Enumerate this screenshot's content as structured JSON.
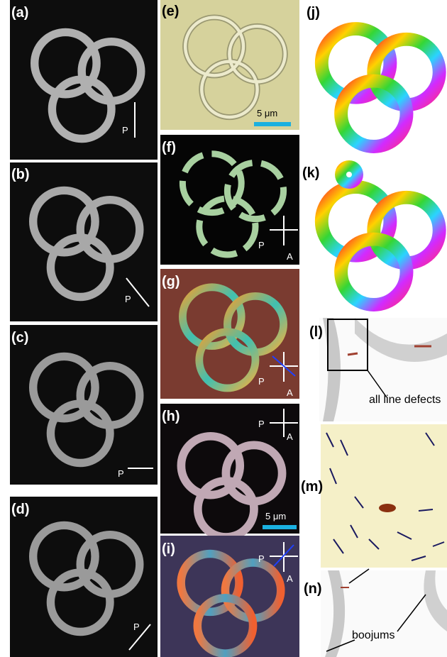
{
  "panels": {
    "a": {
      "label": "(a)",
      "polarizer": "P"
    },
    "b": {
      "label": "(b)",
      "polarizer": "P"
    },
    "c": {
      "label": "(c)",
      "polarizer": "P"
    },
    "d": {
      "label": "(d)",
      "polarizer": "P"
    },
    "e": {
      "label": "(e)",
      "scale": "5 μm"
    },
    "f": {
      "label": "(f)",
      "polarizer": "P",
      "analyzer": "A"
    },
    "g": {
      "label": "(g)",
      "polarizer": "P",
      "analyzer": "A"
    },
    "h": {
      "label": "(h)",
      "polarizer": "P",
      "analyzer": "A",
      "scale": "5 μm"
    },
    "i": {
      "label": "(i)",
      "polarizer": "P",
      "analyzer": "A"
    },
    "j": {
      "label": "(j)"
    },
    "k": {
      "label": "(k)"
    },
    "l": {
      "label": "(l)"
    },
    "m": {
      "label": "(m)"
    },
    "n": {
      "label": "(n)"
    }
  },
  "annotations": {
    "line_defects": "all line defects",
    "boojums": "boojums"
  }
}
